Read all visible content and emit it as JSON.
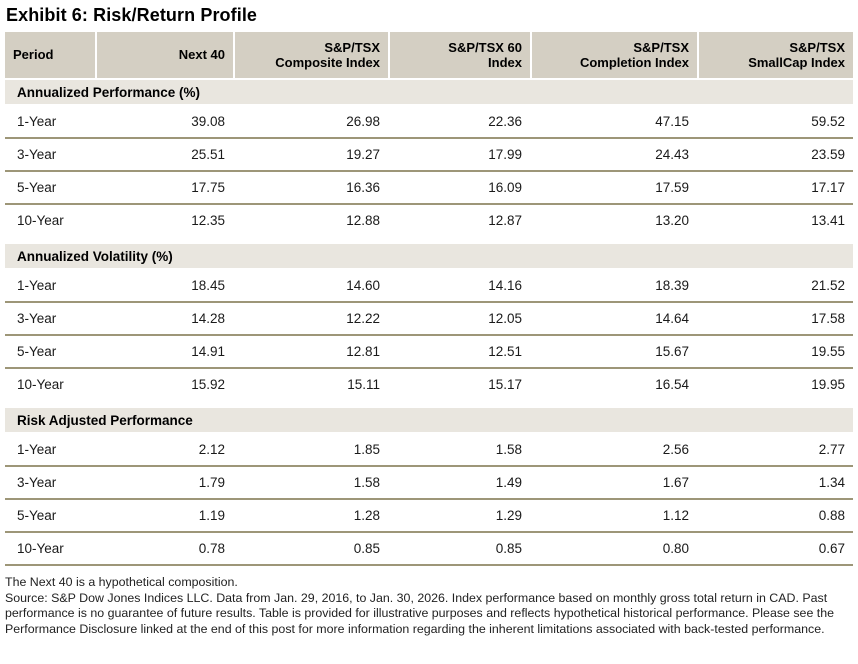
{
  "title": "Exhibit 6: Risk/Return Profile",
  "table": {
    "columns": [
      "Period",
      "Next 40",
      "S&P/TSX\nComposite Index",
      "S&P/TSX 60\nIndex",
      "S&P/TSX\nCompletion Index",
      "S&P/TSX\nSmallCap Index"
    ],
    "sections": [
      {
        "label": "Annualized Performance (%)",
        "rows": [
          {
            "period": "1-Year",
            "values": [
              "39.08",
              "26.98",
              "22.36",
              "47.15",
              "59.52"
            ]
          },
          {
            "period": "3-Year",
            "values": [
              "25.51",
              "19.27",
              "17.99",
              "24.43",
              "23.59"
            ]
          },
          {
            "period": "5-Year",
            "values": [
              "17.75",
              "16.36",
              "16.09",
              "17.59",
              "17.17"
            ]
          },
          {
            "period": "10-Year",
            "values": [
              "12.35",
              "12.88",
              "12.87",
              "13.20",
              "13.41"
            ]
          }
        ]
      },
      {
        "label": "Annualized Volatility (%)",
        "rows": [
          {
            "period": "1-Year",
            "values": [
              "18.45",
              "14.60",
              "14.16",
              "18.39",
              "21.52"
            ]
          },
          {
            "period": "3-Year",
            "values": [
              "14.28",
              "12.22",
              "12.05",
              "14.64",
              "17.58"
            ]
          },
          {
            "period": "5-Year",
            "values": [
              "14.91",
              "12.81",
              "12.51",
              "15.67",
              "19.55"
            ]
          },
          {
            "period": "10-Year",
            "values": [
              "15.92",
              "15.11",
              "15.17",
              "16.54",
              "19.95"
            ]
          }
        ]
      },
      {
        "label": "Risk Adjusted Performance",
        "rows": [
          {
            "period": "1-Year",
            "values": [
              "2.12",
              "1.85",
              "1.58",
              "2.56",
              "2.77"
            ]
          },
          {
            "period": "3-Year",
            "values": [
              "1.79",
              "1.58",
              "1.49",
              "1.67",
              "1.34"
            ]
          },
          {
            "period": "5-Year",
            "values": [
              "1.19",
              "1.28",
              "1.29",
              "1.12",
              "0.88"
            ]
          },
          {
            "period": "10-Year",
            "values": [
              "0.78",
              "0.85",
              "0.85",
              "0.80",
              "0.67"
            ]
          }
        ]
      }
    ]
  },
  "footnotes": [
    "The Next 40 is a hypothetical composition.",
    "Source: S&P Dow Jones Indices LLC. Data from Jan. 29, 2016, to Jan. 30, 2026. Index performance based on monthly gross total return in CAD. Past performance is no guarantee of future results. Table is provided for illustrative purposes and reflects hypothetical historical performance. Please see the Performance Disclosure linked at the end of this post for more information regarding the inherent limitations associated with back-tested performance."
  ],
  "colors": {
    "header_bg": "#d4cfc3",
    "section_bg": "#e9e6df",
    "separator": "#9d9678",
    "text": "#1a1a1a"
  }
}
